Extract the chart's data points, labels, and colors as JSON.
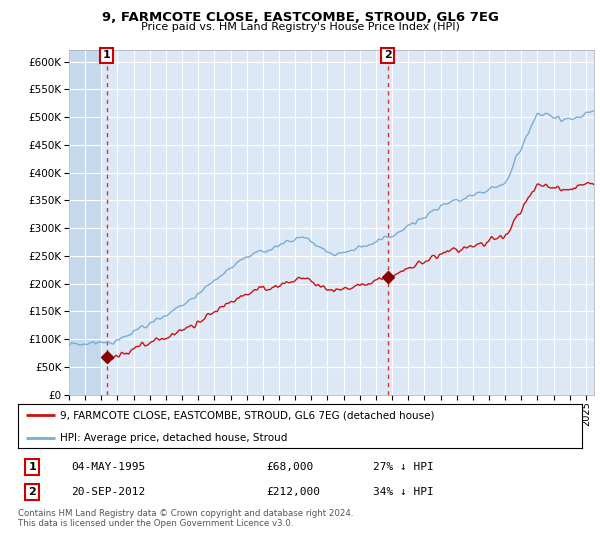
{
  "title1": "9, FARMCOTE CLOSE, EASTCOMBE, STROUD, GL6 7EG",
  "title2": "Price paid vs. HM Land Registry's House Price Index (HPI)",
  "xlim_start": 1993.0,
  "xlim_end": 2025.5,
  "ylim_min": 0,
  "ylim_max": 620000,
  "yticks": [
    0,
    50000,
    100000,
    150000,
    200000,
    250000,
    300000,
    350000,
    400000,
    450000,
    500000,
    550000,
    600000
  ],
  "ytick_labels": [
    "£0",
    "£50K",
    "£100K",
    "£150K",
    "£200K",
    "£250K",
    "£300K",
    "£350K",
    "£400K",
    "£450K",
    "£500K",
    "£550K",
    "£600K"
  ],
  "hpi_color": "#7aadd4",
  "price_color": "#cc1111",
  "marker_color": "#880000",
  "sale1_year": 1995.34,
  "sale1_price": 68000,
  "sale2_year": 2012.72,
  "sale2_price": 212000,
  "legend_price_label": "9, FARMCOTE CLOSE, EASTCOMBE, STROUD, GL6 7EG (detached house)",
  "legend_hpi_label": "HPI: Average price, detached house, Stroud",
  "sale1_text": "04-MAY-1995",
  "sale1_amount": "£68,000",
  "sale1_hpi": "27% ↓ HPI",
  "sale2_text": "20-SEP-2012",
  "sale2_amount": "£212,000",
  "sale2_hpi": "34% ↓ HPI",
  "footer": "Contains HM Land Registry data © Crown copyright and database right 2024.\nThis data is licensed under the Open Government Licence v3.0.",
  "bg_color": "#dce8f5",
  "hatch_region_end": 1995.0,
  "grid_color": "white"
}
